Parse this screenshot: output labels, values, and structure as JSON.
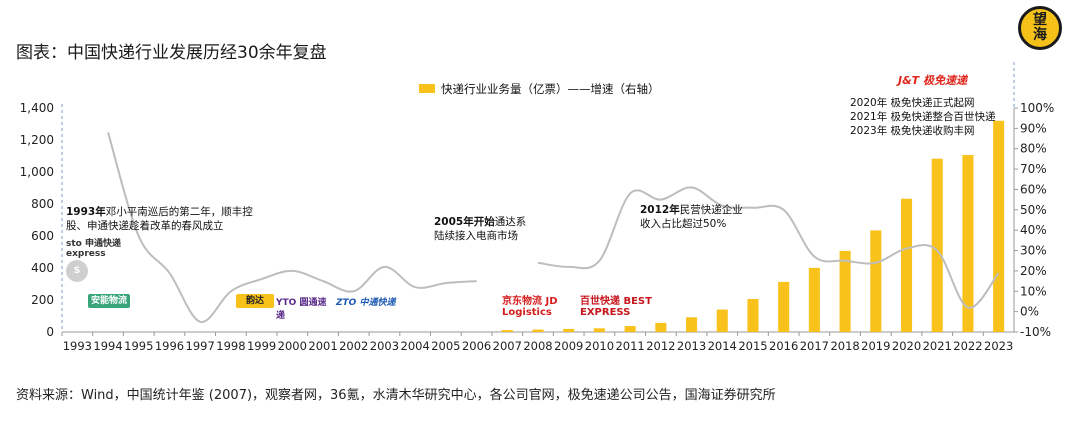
{
  "header": {
    "title": "图表：中国快递行业发展历经30余年复盘"
  },
  "badge": {
    "line1": "望",
    "line2": "海"
  },
  "source": "资料来源：Wind，中国统计年鉴 (2007)，观察者网，36氪，水清木华研究中心，各公司官网，极免速递公司公告，国海证券研究所",
  "chart_data": {
    "type": "bar",
    "legend": "快递行业业务量（亿票）——增速（右轴）",
    "legend_position": "top-center",
    "categories": [
      "1993",
      "1994",
      "1995",
      "1996",
      "1997",
      "1998",
      "1999",
      "2000",
      "2001",
      "2002",
      "2003",
      "2004",
      "2005",
      "2006",
      "2007",
      "2008",
      "2009",
      "2010",
      "2011",
      "2012",
      "2013",
      "2014",
      "2015",
      "2016",
      "2017",
      "2018",
      "2019",
      "2020",
      "2021",
      "2022",
      "2023"
    ],
    "series": [
      {
        "name": "快递行业业务量（亿票）",
        "type": "bar",
        "axis": "left",
        "values": [
          null,
          null,
          null,
          null,
          null,
          null,
          null,
          null,
          null,
          null,
          null,
          null,
          null,
          null,
          12,
          15,
          19,
          23,
          37,
          57,
          92,
          140,
          206,
          313,
          401,
          507,
          635,
          833,
          1083,
          1106,
          1320
        ]
      },
      {
        "name": "增速（右轴）",
        "type": "line",
        "axis": "right",
        "values": [
          null,
          88,
          37,
          19,
          -5,
          10,
          16,
          20,
          15,
          10,
          22,
          12,
          14,
          15,
          null,
          24,
          22,
          25,
          58,
          55,
          61,
          52,
          51,
          50,
          27,
          25,
          24,
          31,
          30,
          2,
          19
        ]
      }
    ],
    "y_left": {
      "min": 0,
      "max": 1400,
      "ticks": [
        "0",
        "200",
        "400",
        "600",
        "800",
        "1,000",
        "1,200",
        "1,400"
      ]
    },
    "y_right": {
      "min": -10,
      "max": 100,
      "ticks": [
        "-10%",
        "0%",
        "10%",
        "20%",
        "30%",
        "40%",
        "50%",
        "60%",
        "70%",
        "80%",
        "90%",
        "100%"
      ]
    },
    "grid": false,
    "colors": {
      "bar": "#f9c21a",
      "line": "#bdbdbd",
      "axis": "#9a9a9a",
      "dashed_guide": "#7f9fd0"
    },
    "annotations": {
      "a1993": {
        "bold": "1993年",
        "text": "邓小平南巡后的第二年，顺丰控股、申通快递趁着改革的春风成立"
      },
      "a2005": {
        "bold": "2005年开始",
        "text": "通达系陆续接入电商市场"
      },
      "a2012": {
        "bold": "2012年",
        "text": "民营快递企业收入占比超过50%"
      },
      "jt": {
        "lines": [
          "2020年 极免快递正式起网",
          "2021年 极免快递整合百世快递",
          "2023年 极免快递收购丰网"
        ]
      }
    },
    "logos": {
      "sto": "sto 申通快递 express",
      "anneng": "安能物流",
      "yunda": "韵达",
      "yto": "YTO 圆通速递",
      "zto": "ZTO 中通快递",
      "jd": "京东物流 JD Logistics",
      "best": "百世快递 BEST EXPRESS",
      "jt": "J&T 极免速递"
    }
  }
}
